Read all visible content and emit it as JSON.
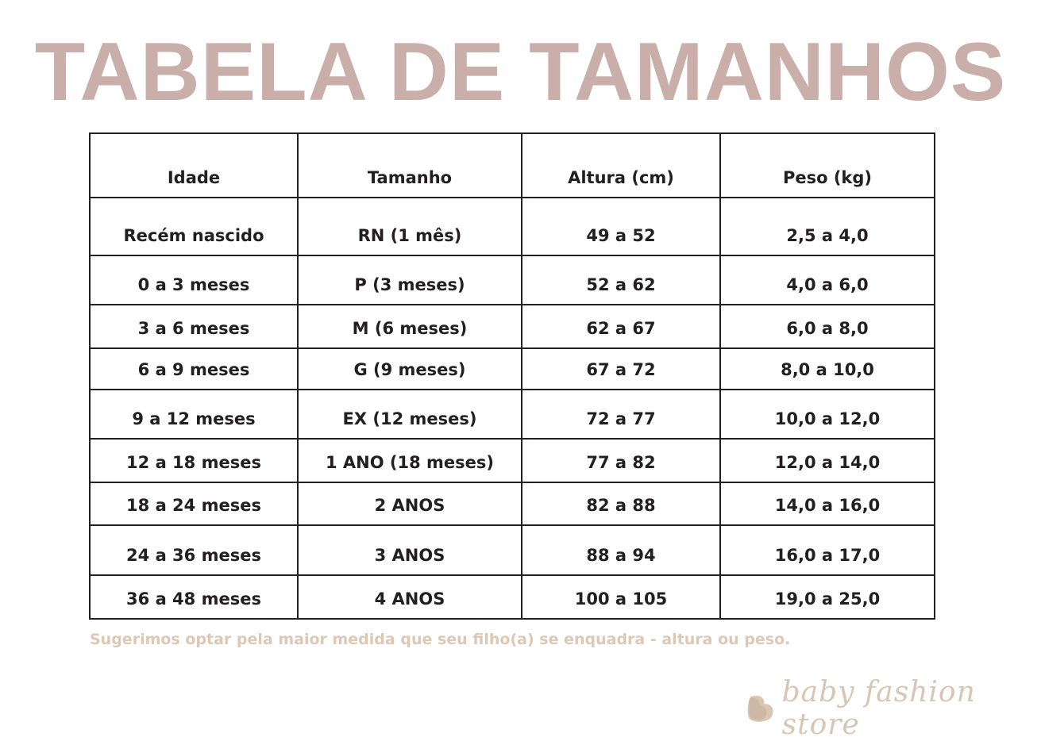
{
  "title": "TABELA DE TAMANHOS",
  "table": {
    "headers": [
      "Idade",
      "Tamanho",
      "Altura (cm)",
      "Peso (kg)"
    ],
    "rows": [
      [
        "Recém nascido",
        "RN (1 mês)",
        "49 a 52",
        "2,5 a 4,0"
      ],
      [
        "0 a 3 meses",
        "P  (3  meses)",
        "52 a 62",
        "4,0 a 6,0"
      ],
      [
        "3 a 6 meses",
        "M (6 meses)",
        "62 a 67",
        "6,0 a 8,0"
      ],
      [
        "6 a 9 meses",
        "G (9 meses)",
        "67 a 72",
        "8,0 a 10,0"
      ],
      [
        "9 a 12 meses",
        "EX (12 meses)",
        "72 a 77",
        "10,0 a 12,0"
      ],
      [
        "12 a 18 meses",
        "1 ANO (18 meses)",
        "77 a 82",
        "12,0 a 14,0"
      ],
      [
        "18 a 24 meses",
        "2 ANOS",
        "82 a 88",
        "14,0 a 16,0"
      ],
      [
        "24 a 36 meses",
        "3  ANOS",
        "88 a 94",
        "16,0 a 17,0"
      ],
      [
        "36 a 48 meses",
        "4 ANOS",
        "100 a 105",
        "19,0 a 25,0"
      ]
    ]
  },
  "note": "Sugerimos optar pela maior medida que seu  filho(a) se enquadra - altura ou peso.",
  "logo": {
    "text": "baby fashion store",
    "icon": "butterfly-icon"
  },
  "colors": {
    "title": "#c9aea9",
    "note": "#dcc8b4",
    "border": "#231f20"
  }
}
